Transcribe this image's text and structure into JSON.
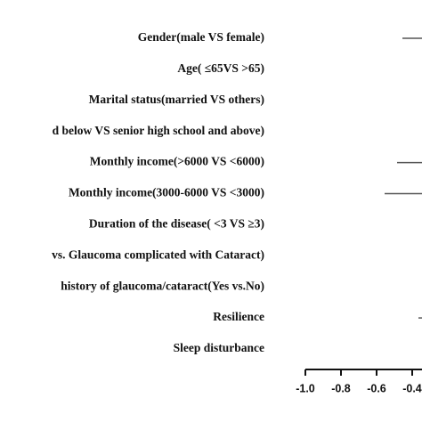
{
  "chart_data": {
    "type": "forest",
    "categories": [
      "Gender(male VS female)",
      "Age( ≤65VS >65)",
      "Marital status(married VS others)",
      "d below VS senior high school and above)",
      "Monthly income(>6000 VS <6000)",
      "Monthly income(3000-6000 VS <3000)",
      "Duration of the disease( <3 VS ≥3)",
      "vs. Glaucoma complicated with Cataract)",
      "history of glaucoma/cataract(Yes vs.No)",
      "Resilience",
      "Sleep disturbance"
    ],
    "values": [
      -0.455,
      null,
      null,
      null,
      -0.485,
      -0.555,
      null,
      null,
      null,
      -0.365,
      null
    ],
    "color": "#555555",
    "xlim": [
      -1.0,
      -0.345
    ],
    "xticks": [
      {
        "value": -1.0,
        "label": "-1.0"
      },
      {
        "value": -0.8,
        "label": "-0.8"
      },
      {
        "value": -0.6,
        "label": "-0.6"
      },
      {
        "value": -0.4,
        "label": "-0.4"
      }
    ]
  }
}
